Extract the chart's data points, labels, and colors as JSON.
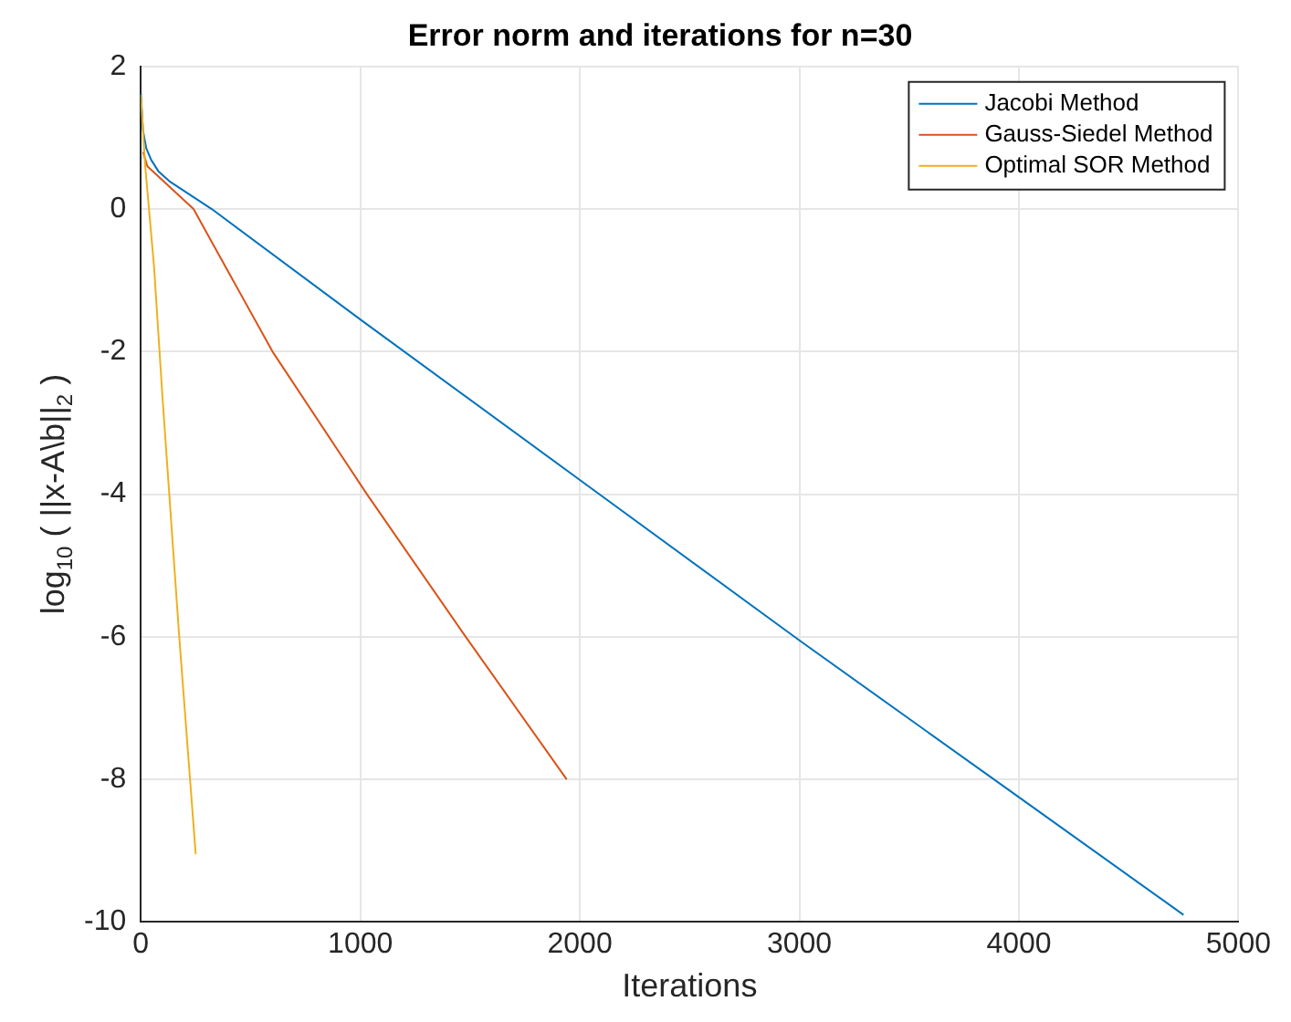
{
  "chart_data": {
    "type": "line",
    "title": "Error norm and iterations for n=30",
    "xlabel": "Iterations",
    "ylabel": "log$_{10}$ ( ||x-A\\b||$_{2}$ )",
    "xlim": [
      0,
      5000
    ],
    "xticks": [
      0,
      1000,
      2000,
      3000,
      4000,
      5000
    ],
    "ylim": [
      -10,
      2
    ],
    "yticks": [
      -10,
      -8,
      -6,
      -4,
      -2,
      0,
      2
    ],
    "grid": true,
    "legend": "top right",
    "marker": "none",
    "line_style": "solid",
    "series": [
      {
        "name": "Jacobi Method",
        "color": "#0072bd",
        "x": [
          0,
          10,
          25,
          47,
          80,
          130,
          323,
          1000,
          2000,
          3000,
          4000,
          4750
        ],
        "values": [
          1.63,
          1.1,
          0.85,
          0.69,
          0.53,
          0.39,
          0,
          -1.55,
          -3.8,
          -6.05,
          -8.25,
          -9.9
        ]
      },
      {
        "name": "Gauss-Siedel Method",
        "color": "#d95319",
        "x": [
          10,
          30,
          240,
          600,
          1030,
          1480,
          1940
        ],
        "values": [
          0.8,
          0.6,
          0,
          -2,
          -4,
          -6,
          -8
        ]
      },
      {
        "name": "Optimal SOR Method",
        "color": "#edb120",
        "x": [
          0,
          20,
          60,
          100,
          175,
          250
        ],
        "values": [
          1.6,
          0.6,
          -0.8,
          -2.7,
          -6,
          -9.05
        ]
      }
    ]
  }
}
